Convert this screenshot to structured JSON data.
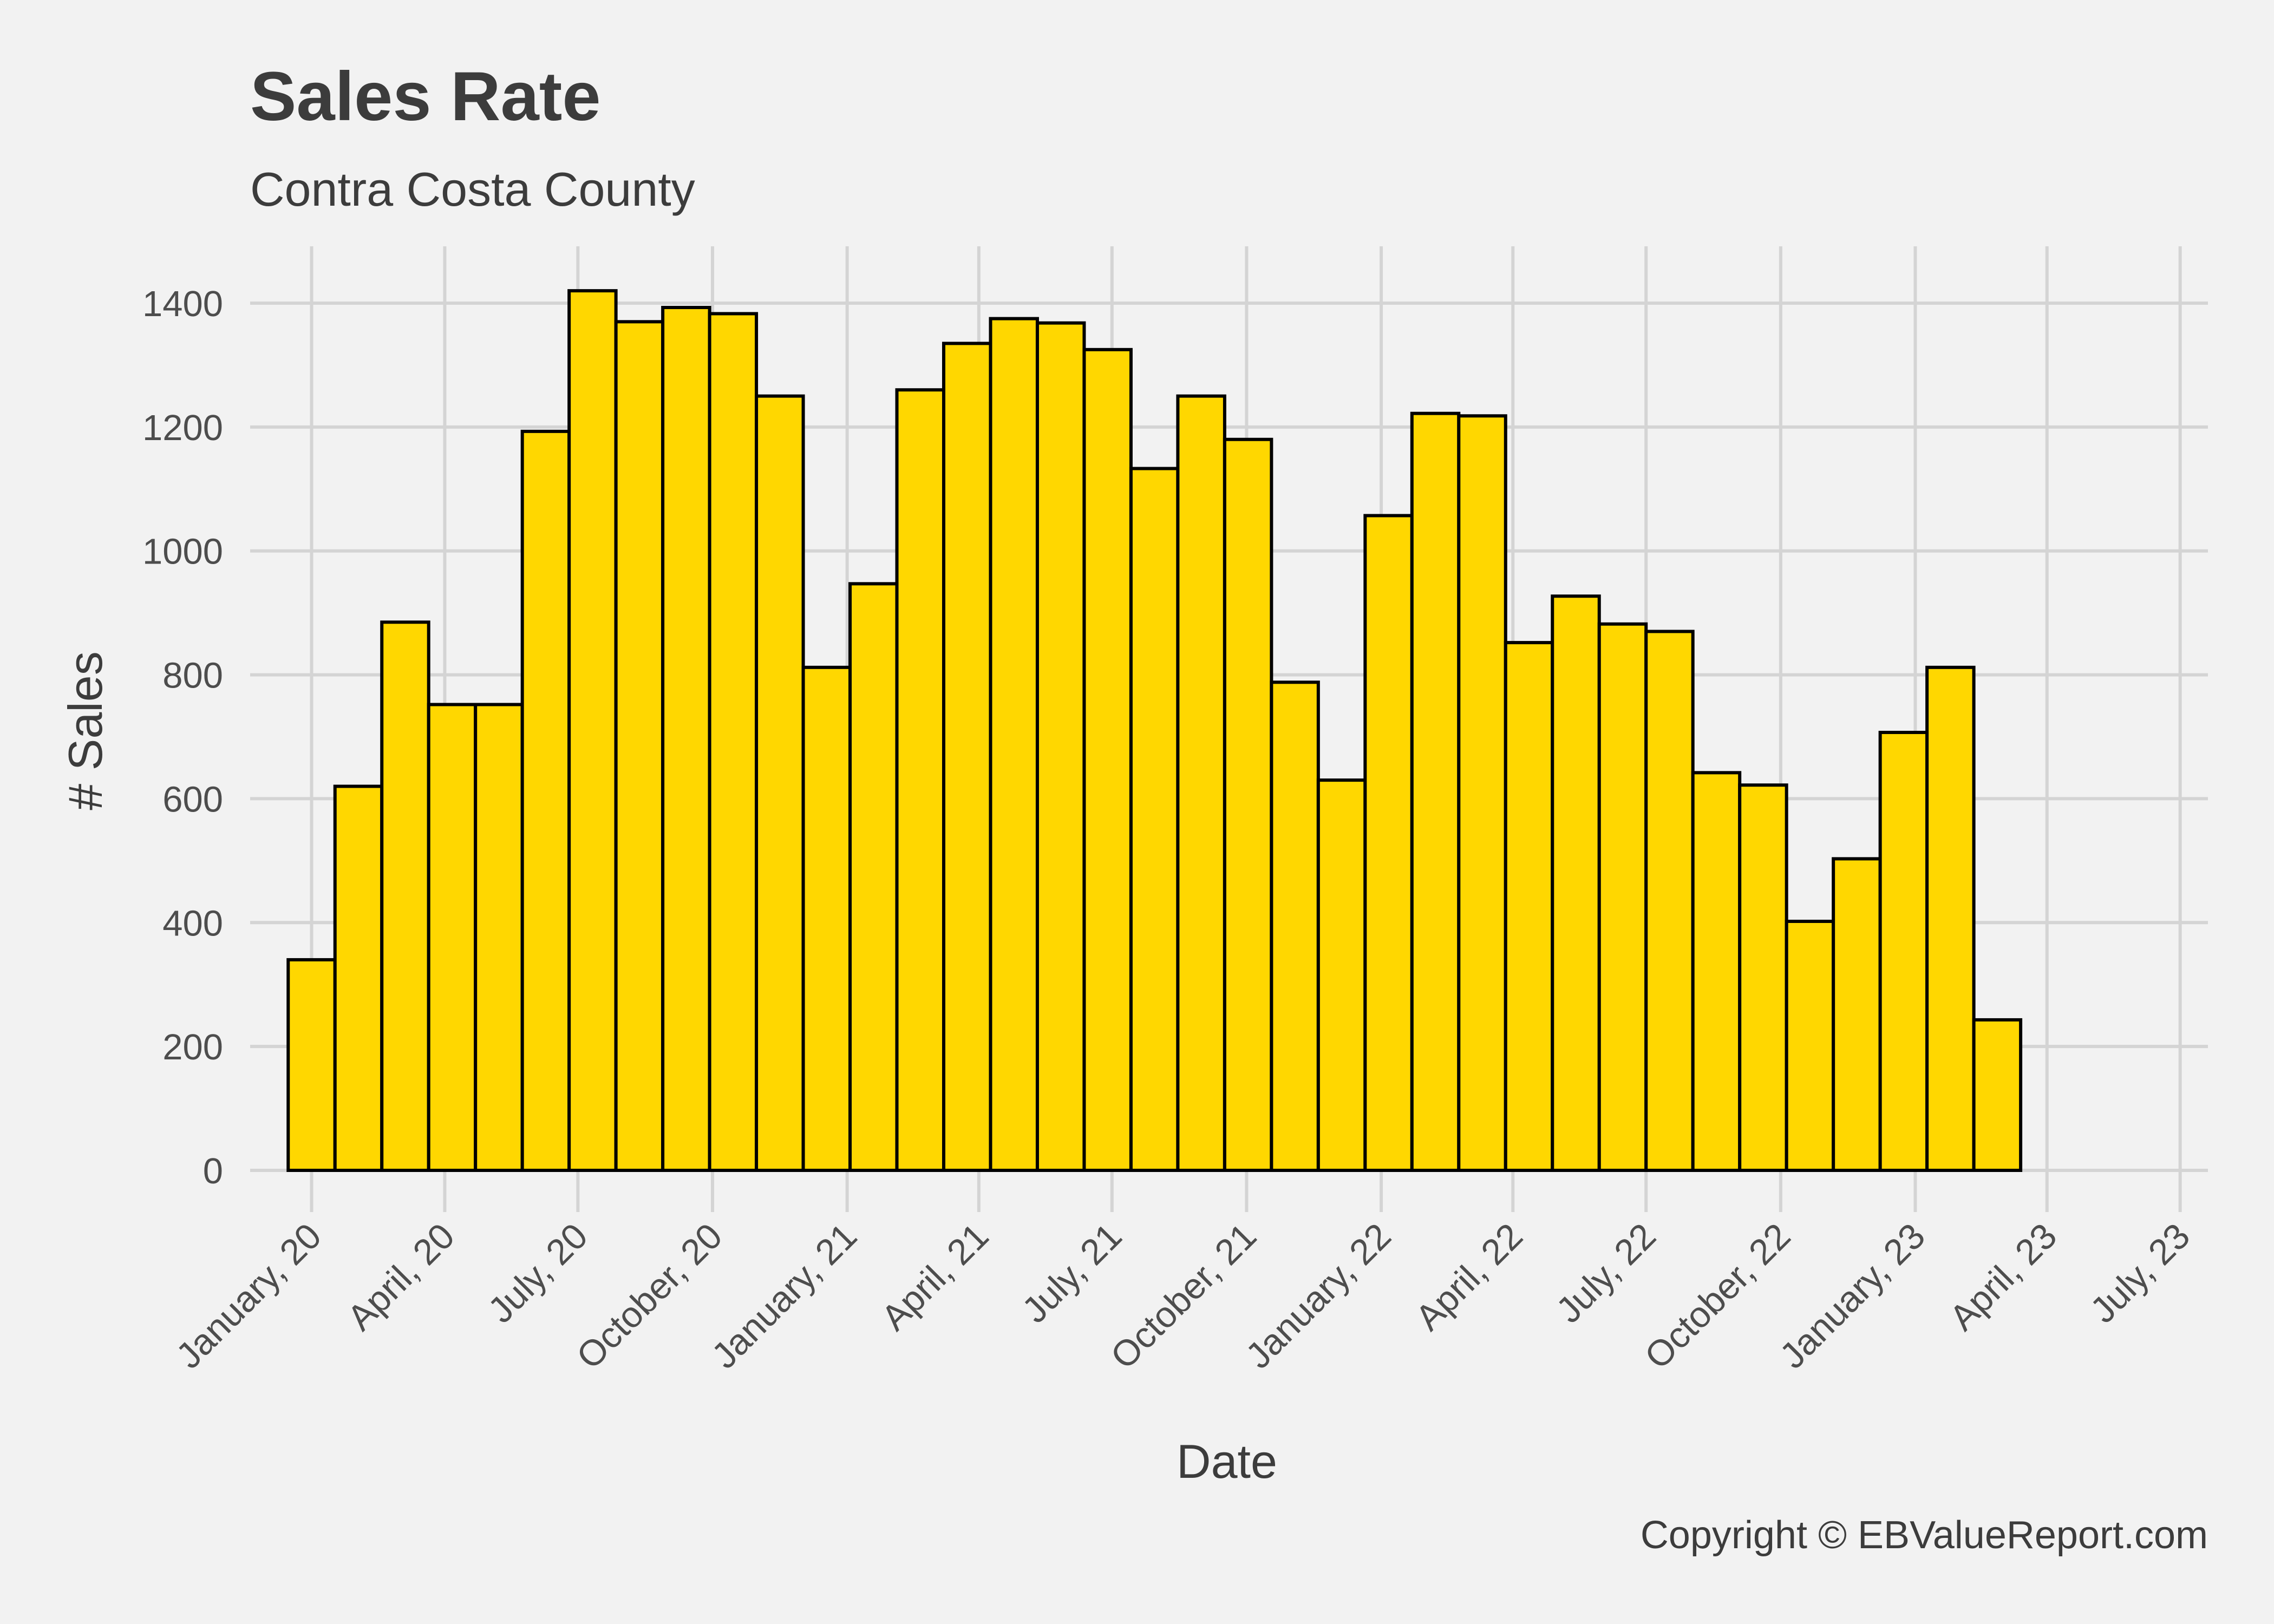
{
  "chart_data": {
    "type": "bar",
    "title": "Sales Rate",
    "subtitle": "Contra Costa County",
    "xlabel": "Date",
    "ylabel": "# Sales",
    "caption": "Copyright  © EBValueReport.com",
    "ylim": [
      0,
      1500
    ],
    "yticks": [
      0,
      200,
      400,
      600,
      800,
      1000,
      1200,
      1400
    ],
    "grid": true,
    "bar_color": "#FFD700",
    "bar_outline": "#000000",
    "background": "#f2f2f2",
    "x_range": [
      "2019-11-20",
      "2023-07-20"
    ],
    "x_ticks": [
      {
        "date": "2020-01-01",
        "label": "January, 20"
      },
      {
        "date": "2020-04-01",
        "label": "April, 20"
      },
      {
        "date": "2020-07-01",
        "label": "July, 20"
      },
      {
        "date": "2020-10-01",
        "label": "October, 20"
      },
      {
        "date": "2021-01-01",
        "label": "January, 21"
      },
      {
        "date": "2021-04-01",
        "label": "April, 21"
      },
      {
        "date": "2021-07-01",
        "label": "July, 21"
      },
      {
        "date": "2021-10-01",
        "label": "October, 21"
      },
      {
        "date": "2022-01-01",
        "label": "January, 22"
      },
      {
        "date": "2022-04-01",
        "label": "April, 22"
      },
      {
        "date": "2022-07-01",
        "label": "July, 22"
      },
      {
        "date": "2022-10-01",
        "label": "October, 22"
      },
      {
        "date": "2023-01-01",
        "label": "January, 23"
      },
      {
        "date": "2023-04-01",
        "label": "April, 23"
      },
      {
        "date": "2023-07-01",
        "label": "July, 23"
      }
    ],
    "bins": [
      {
        "start": "2019-12-16",
        "end": "2020-01-17",
        "value": 340
      },
      {
        "start": "2020-01-17",
        "end": "2020-02-18",
        "value": 620
      },
      {
        "start": "2020-02-18",
        "end": "2020-03-21",
        "value": 885
      },
      {
        "start": "2020-03-21",
        "end": "2020-04-22",
        "value": 752
      },
      {
        "start": "2020-04-22",
        "end": "2020-05-24",
        "value": 752
      },
      {
        "start": "2020-05-24",
        "end": "2020-06-25",
        "value": 1193
      },
      {
        "start": "2020-06-25",
        "end": "2020-07-27",
        "value": 1420
      },
      {
        "start": "2020-07-27",
        "end": "2020-08-28",
        "value": 1370
      },
      {
        "start": "2020-08-28",
        "end": "2020-09-29",
        "value": 1393
      },
      {
        "start": "2020-09-29",
        "end": "2020-10-31",
        "value": 1383
      },
      {
        "start": "2020-10-31",
        "end": "2020-12-02",
        "value": 1250
      },
      {
        "start": "2020-12-02",
        "end": "2021-01-03",
        "value": 812
      },
      {
        "start": "2021-01-03",
        "end": "2021-02-04",
        "value": 947
      },
      {
        "start": "2021-02-04",
        "end": "2021-03-08",
        "value": 1260
      },
      {
        "start": "2021-03-08",
        "end": "2021-04-09",
        "value": 1335
      },
      {
        "start": "2021-04-09",
        "end": "2021-05-11",
        "value": 1375
      },
      {
        "start": "2021-05-11",
        "end": "2021-06-12",
        "value": 1368
      },
      {
        "start": "2021-06-12",
        "end": "2021-07-14",
        "value": 1325
      },
      {
        "start": "2021-07-14",
        "end": "2021-08-15",
        "value": 1133
      },
      {
        "start": "2021-08-15",
        "end": "2021-09-16",
        "value": 1250
      },
      {
        "start": "2021-09-16",
        "end": "2021-10-18",
        "value": 1180
      },
      {
        "start": "2021-10-18",
        "end": "2021-11-19",
        "value": 788
      },
      {
        "start": "2021-11-19",
        "end": "2021-12-21",
        "value": 630
      },
      {
        "start": "2021-12-21",
        "end": "2022-01-22",
        "value": 1057
      },
      {
        "start": "2022-01-22",
        "end": "2022-02-23",
        "value": 1222
      },
      {
        "start": "2022-02-23",
        "end": "2022-03-27",
        "value": 1218
      },
      {
        "start": "2022-03-27",
        "end": "2022-04-28",
        "value": 852
      },
      {
        "start": "2022-04-28",
        "end": "2022-05-30",
        "value": 927
      },
      {
        "start": "2022-05-30",
        "end": "2022-07-01",
        "value": 882
      },
      {
        "start": "2022-07-01",
        "end": "2022-08-02",
        "value": 870
      },
      {
        "start": "2022-08-02",
        "end": "2022-09-03",
        "value": 642
      },
      {
        "start": "2022-09-03",
        "end": "2022-10-05",
        "value": 622
      },
      {
        "start": "2022-10-05",
        "end": "2022-11-06",
        "value": 402
      },
      {
        "start": "2022-11-06",
        "end": "2022-12-08",
        "value": 503
      },
      {
        "start": "2022-12-08",
        "end": "2023-01-09",
        "value": 707
      },
      {
        "start": "2023-01-09",
        "end": "2023-02-10",
        "value": 812
      },
      {
        "start": "2023-02-10",
        "end": "2023-03-14",
        "value": 243
      }
    ]
  }
}
